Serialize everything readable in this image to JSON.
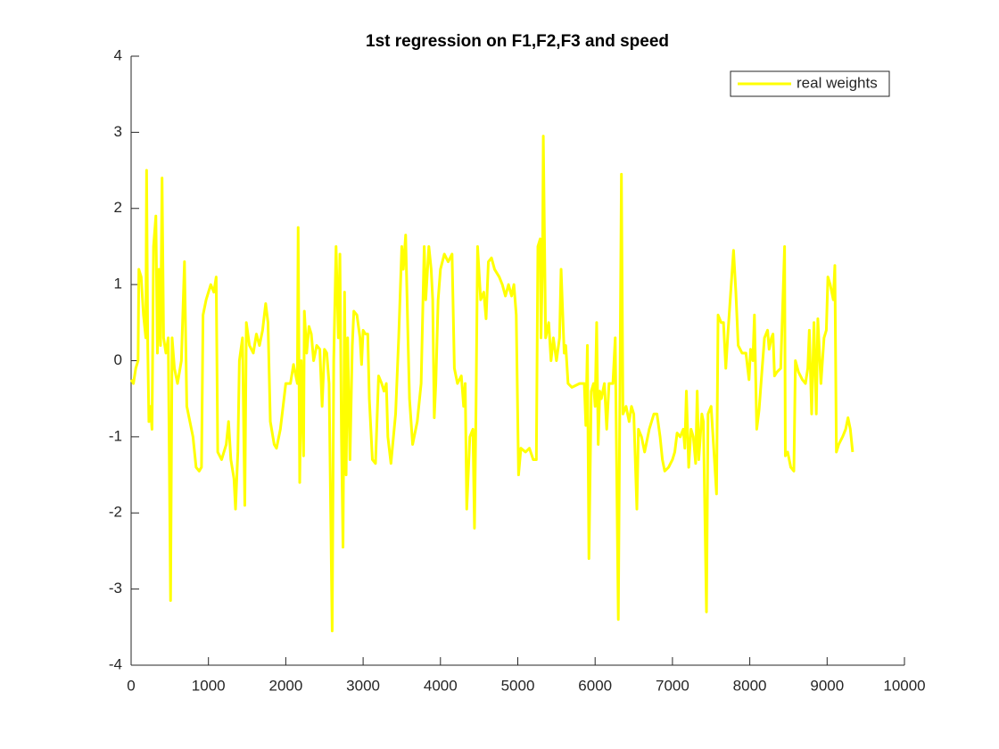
{
  "chart_data": {
    "type": "line",
    "title": "1st regression on F1,F2,F3 and speed",
    "x": [
      0,
      30,
      60,
      90,
      100,
      130,
      160,
      190,
      200,
      215,
      230,
      250,
      270,
      290,
      320,
      340,
      360,
      380,
      400,
      420,
      450,
      480,
      510,
      530,
      560,
      600,
      650,
      690,
      720,
      760,
      800,
      840,
      880,
      910,
      930,
      970,
      1030,
      1070,
      1100,
      1120,
      1170,
      1230,
      1260,
      1290,
      1330,
      1350,
      1380,
      1400,
      1440,
      1470,
      1490,
      1530,
      1580,
      1620,
      1660,
      1700,
      1740,
      1770,
      1800,
      1850,
      1880,
      1930,
      2000,
      2060,
      2100,
      2150,
      2160,
      2180,
      2200,
      2230,
      2240,
      2270,
      2300,
      2330,
      2360,
      2400,
      2440,
      2470,
      2500,
      2530,
      2560,
      2600,
      2620,
      2650,
      2680,
      2700,
      2720,
      2740,
      2760,
      2780,
      2800,
      2830,
      2860,
      2880,
      2920,
      2960,
      2980,
      3000,
      3030,
      3060,
      3080,
      3120,
      3160,
      3200,
      3240,
      3270,
      3300,
      3320,
      3360,
      3420,
      3460,
      3500,
      3520,
      3550,
      3580,
      3600,
      3640,
      3700,
      3750,
      3790,
      3810,
      3850,
      3880,
      3900,
      3920,
      3940,
      3970,
      4000,
      4050,
      4100,
      4150,
      4180,
      4220,
      4270,
      4300,
      4320,
      4340,
      4380,
      4420,
      4440,
      4460,
      4480,
      4520,
      4560,
      4590,
      4620,
      4660,
      4700,
      4760,
      4800,
      4840,
      4880,
      4920,
      4950,
      4980,
      5010,
      5040,
      5100,
      5150,
      5200,
      5240,
      5260,
      5290,
      5300,
      5320,
      5330,
      5360,
      5400,
      5430,
      5460,
      5500,
      5540,
      5560,
      5600,
      5620,
      5650,
      5700,
      5800,
      5860,
      5880,
      5900,
      5920,
      5950,
      5980,
      6000,
      6020,
      6040,
      6060,
      6080,
      6120,
      6150,
      6180,
      6200,
      6230,
      6260,
      6300,
      6320,
      6340,
      6360,
      6400,
      6440,
      6470,
      6500,
      6540,
      6560,
      6600,
      6640,
      6700,
      6760,
      6800,
      6840,
      6870,
      6900,
      6950,
      7000,
      7030,
      7060,
      7100,
      7140,
      7160,
      7180,
      7210,
      7240,
      7270,
      7300,
      7320,
      7340,
      7380,
      7400,
      7440,
      7460,
      7500,
      7540,
      7570,
      7590,
      7630,
      7660,
      7690,
      7720,
      7760,
      7790,
      7820,
      7850,
      7900,
      7950,
      7990,
      8010,
      8040,
      8060,
      8090,
      8120,
      8160,
      8190,
      8230,
      8250,
      8280,
      8300,
      8320,
      8350,
      8400,
      8450,
      8460,
      8490,
      8530,
      8570,
      8590,
      8630,
      8680,
      8720,
      8750,
      8770,
      8800,
      8830,
      8860,
      8880,
      8920,
      8960,
      8990,
      9010,
      9040,
      9080,
      9100,
      9120,
      9150,
      9200,
      9240,
      9270,
      9300,
      9330
    ],
    "series": [
      {
        "name": "real weights",
        "color": "#ffff00",
        "values": [
          -0.25,
          -0.3,
          -0.1,
          0,
          1.2,
          1.1,
          0.6,
          0.3,
          2.5,
          0.2,
          -0.8,
          -0.6,
          -0.9,
          1.5,
          1.9,
          0.1,
          1.2,
          0.2,
          2.4,
          0.3,
          0.1,
          0.3,
          -3.15,
          0.3,
          -0.1,
          -0.3,
          0,
          1.3,
          -0.6,
          -0.8,
          -1.0,
          -1.4,
          -1.45,
          -1.4,
          0.6,
          0.8,
          1.0,
          0.9,
          1.1,
          -1.2,
          -1.3,
          -1.1,
          -0.8,
          -1.3,
          -1.55,
          -1.95,
          -1.2,
          0,
          0.3,
          -1.9,
          0.5,
          0.2,
          0.1,
          0.35,
          0.2,
          0.4,
          0.75,
          0.5,
          -0.8,
          -1.1,
          -1.15,
          -0.9,
          -0.3,
          -0.3,
          -0.05,
          -0.3,
          1.75,
          -1.6,
          0,
          -1.25,
          0.65,
          0.1,
          0.45,
          0.35,
          0,
          0.2,
          0.15,
          -0.6,
          0.15,
          0.1,
          -0.3,
          -3.55,
          0.0,
          1.5,
          0.3,
          1.4,
          -1.0,
          -2.45,
          0.9,
          -1.5,
          0.3,
          -1.3,
          0.2,
          0.65,
          0.6,
          0.3,
          -0.05,
          0.4,
          0.35,
          0.35,
          -0.5,
          -1.3,
          -1.35,
          -0.2,
          -0.3,
          -0.4,
          -0.3,
          -1.0,
          -1.35,
          -0.7,
          0.3,
          1.5,
          1.2,
          1.65,
          0.3,
          -0.5,
          -1.1,
          -0.8,
          -0.3,
          1.5,
          0.8,
          1.5,
          1.2,
          0.8,
          -0.75,
          -0.3,
          0.8,
          1.2,
          1.4,
          1.3,
          1.4,
          -0.1,
          -0.3,
          -0.2,
          -0.6,
          -0.3,
          -1.95,
          -1.0,
          -0.9,
          -2.2,
          -0.6,
          1.5,
          0.8,
          0.9,
          0.55,
          1.3,
          1.35,
          1.2,
          1.1,
          1.0,
          0.85,
          1.0,
          0.85,
          1.0,
          0.6,
          -1.5,
          -1.15,
          -1.2,
          -1.15,
          -1.3,
          -1.3,
          1.5,
          1.6,
          0.3,
          1.3,
          2.95,
          0.3,
          0.5,
          0.0,
          0.3,
          0.0,
          0.3,
          1.2,
          0.1,
          0.2,
          -0.3,
          -0.35,
          -0.3,
          -0.3,
          -0.85,
          0.2,
          -2.6,
          -0.4,
          -0.3,
          -0.6,
          0.5,
          -1.1,
          -0.4,
          -0.5,
          -0.3,
          -0.9,
          -0.3,
          -0.3,
          -0.3,
          0.3,
          -3.4,
          -0.5,
          2.45,
          -0.7,
          -0.6,
          -0.8,
          -0.6,
          -0.7,
          -1.95,
          -0.9,
          -1.0,
          -1.2,
          -0.9,
          -0.7,
          -0.7,
          -1.0,
          -1.3,
          -1.45,
          -1.4,
          -1.3,
          -1.2,
          -0.95,
          -1.0,
          -0.9,
          -1.15,
          -0.4,
          -1.4,
          -0.9,
          -1.0,
          -1.35,
          -0.4,
          -1.3,
          -0.7,
          -0.8,
          -3.3,
          -0.7,
          -0.6,
          -1.25,
          -1.75,
          0.6,
          0.5,
          0.5,
          -0.1,
          0.4,
          1.0,
          1.45,
          0.9,
          0.2,
          0.1,
          0.1,
          -0.25,
          0.15,
          0.0,
          0.6,
          -0.9,
          -0.65,
          -0.1,
          0.3,
          0.4,
          0.15,
          0.3,
          0.35,
          -0.2,
          -0.15,
          -0.1,
          1.5,
          -1.25,
          -1.2,
          -1.4,
          -1.45,
          0.0,
          -0.15,
          -0.25,
          -0.3,
          -0.1,
          0.4,
          -0.7,
          0.5,
          -0.7,
          0.55,
          -0.3,
          0.3,
          0.4,
          1.1,
          1.0,
          0.8,
          1.25,
          -1.2,
          -1.1,
          -1.0,
          -0.9,
          -0.75,
          -0.9,
          -1.2
        ]
      }
    ],
    "xlim": [
      0,
      10000
    ],
    "xticks": [
      0,
      1000,
      2000,
      3000,
      4000,
      5000,
      6000,
      7000,
      8000,
      9000,
      10000
    ],
    "ylim": [
      -4,
      4
    ],
    "yticks": [
      -4,
      -3,
      -2,
      -1,
      0,
      1,
      2,
      3,
      4
    ],
    "legend": "upper right"
  }
}
